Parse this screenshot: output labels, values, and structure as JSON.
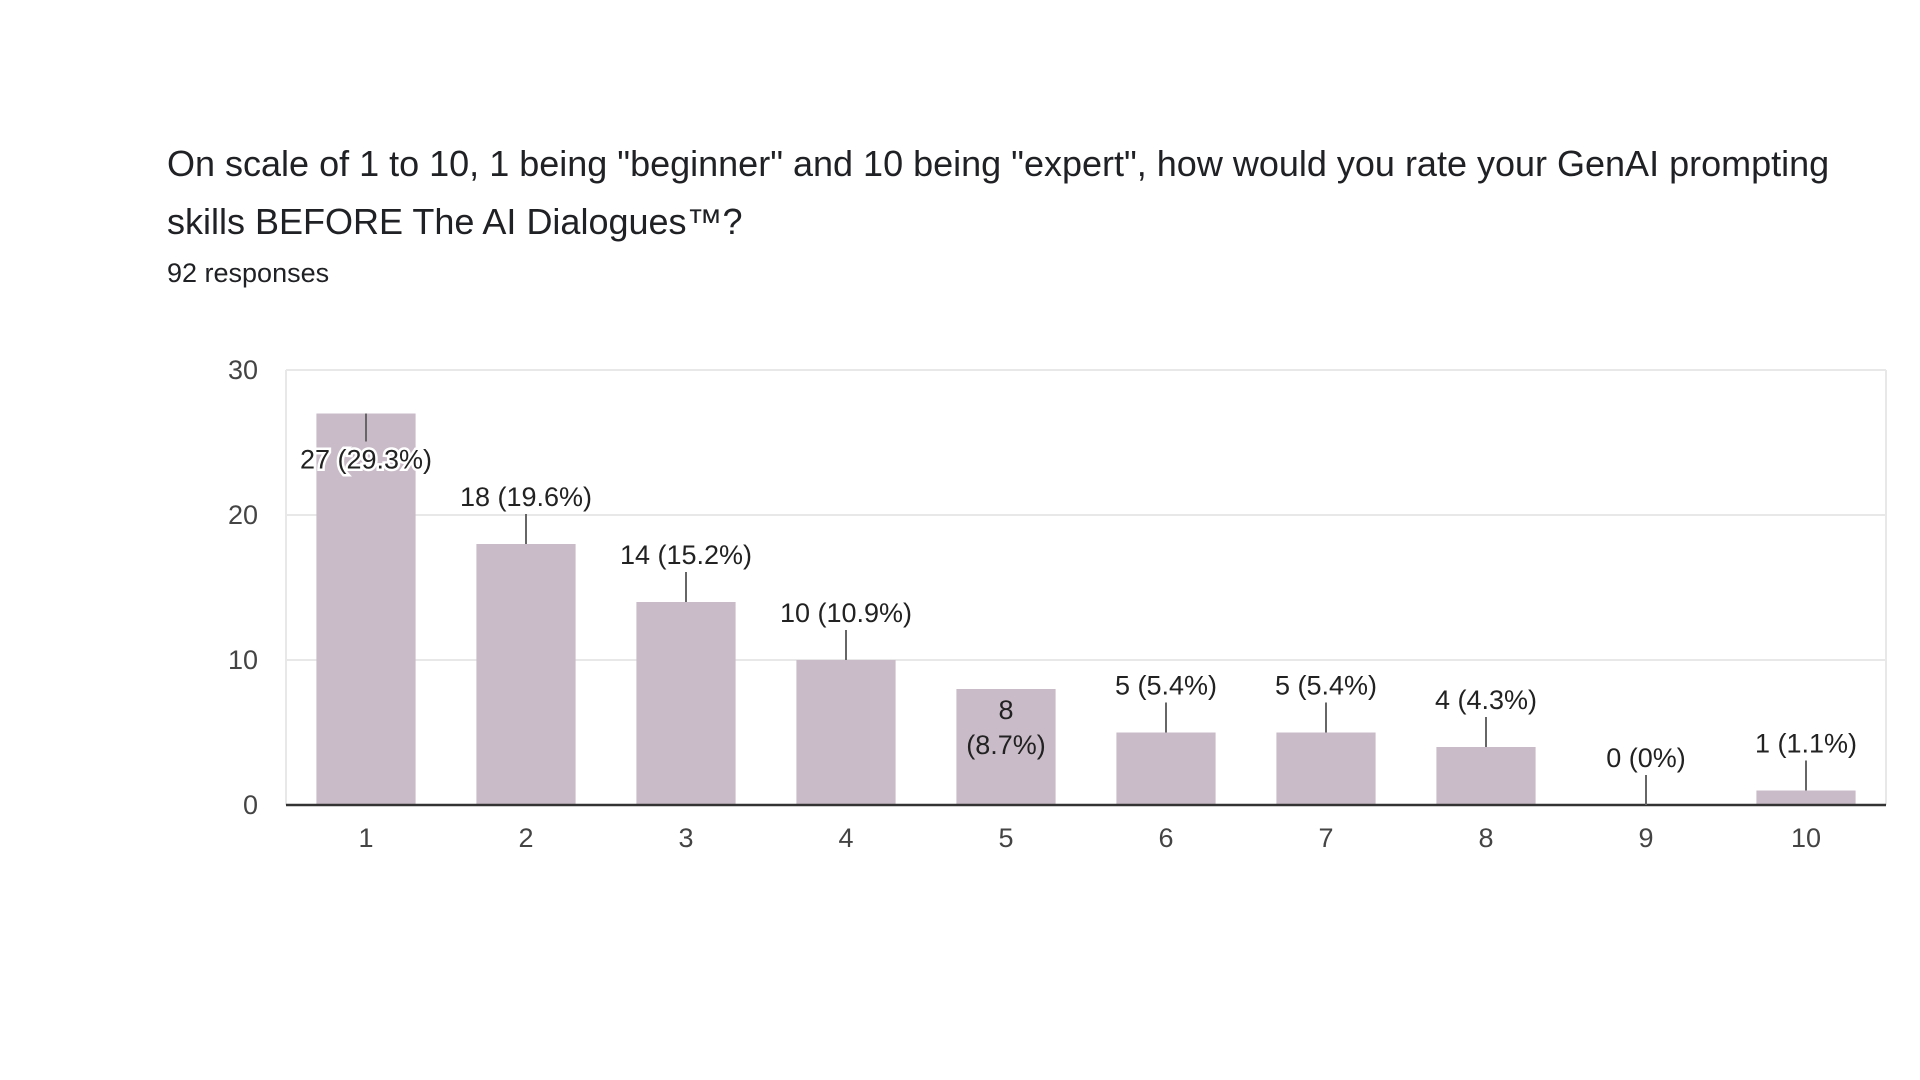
{
  "form": {
    "question": "On scale of 1 to 10, 1 being \"beginner\" and 10 being \"expert\", how would you rate your GenAI prompting skills  BEFORE The AI Dialogues™?",
    "responses": "92 responses"
  },
  "chart_data": {
    "type": "bar",
    "categories": [
      "1",
      "2",
      "3",
      "4",
      "5",
      "6",
      "7",
      "8",
      "9",
      "10"
    ],
    "values": [
      27,
      18,
      14,
      10,
      8,
      5,
      5,
      4,
      0,
      1
    ],
    "data_labels": [
      "27 (29.3%)",
      "18 (19.6%)",
      "14 (15.2%)",
      "10 (10.9%)",
      "8 (8.7%)",
      "5 (5.4%)",
      "5 (5.4%)",
      "4 (4.3%)",
      "0 (0%)",
      "1 (1.1%)"
    ],
    "yticks": [
      0,
      10,
      20,
      30
    ],
    "ylim": [
      0,
      30
    ],
    "grid": true,
    "legend": "none",
    "bar_color": "#c9bcc8",
    "grid_color": "#e8e8e8",
    "axis_color": "#333333"
  }
}
